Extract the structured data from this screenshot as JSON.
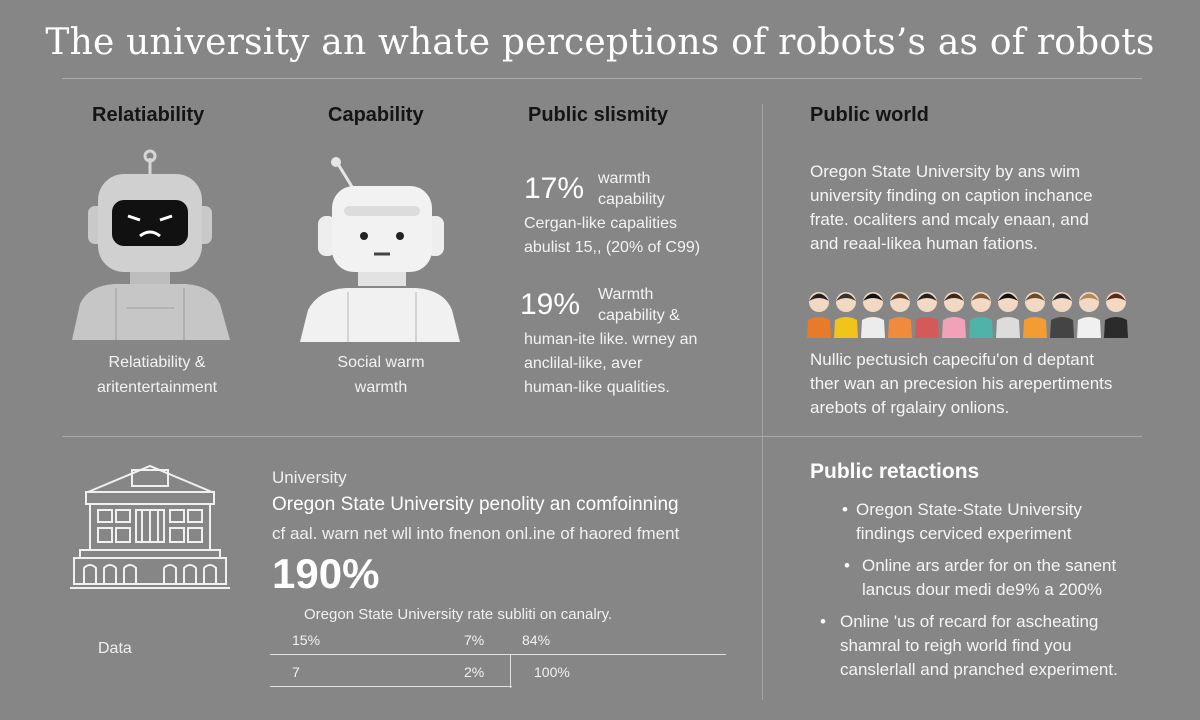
{
  "title": "The university an whate perceptions of robots’s as of robots",
  "columns": {
    "relatability": {
      "heading": "Relatiability",
      "caption_line1": "Relatiability &",
      "caption_line2": "aritentertainment"
    },
    "capability": {
      "heading": "Capability",
      "caption_line1": "Social warm",
      "caption_line2": "warmth"
    },
    "public_similarity": {
      "heading": "Public slismity",
      "stat1": {
        "value": "17%",
        "label1": "warmth",
        "label2": "capability",
        "line1": "Cergan-like capalities",
        "line2": "abulist 15,, (20% of C99)"
      },
      "stat2": {
        "value": "19%",
        "label1": "Warmth",
        "label2": "capability &",
        "line1": "human-ite like. wrney an",
        "line2": "anclilal-like, aver",
        "line3": "human-like qualities."
      }
    },
    "public_world": {
      "heading": "Public world",
      "para1_line1": "Oregon State University by ans wim",
      "para1_line2": "university finding on caption inchance",
      "para1_line3": "frate. ocaliters and mcaly enaan, and",
      "para1_line4": "and reaal-likea human fations.",
      "para2_line1": "Nullic pectusich capecifu'on d deptant",
      "para2_line2": "ther wan an precesion his arepertiments",
      "para2_line3": "arebots of rgalairy onlions."
    }
  },
  "bottom": {
    "left_label": "Data",
    "small_label": "University",
    "line1": "Oregon State University penolity an comfoinning",
    "line2": "cf aal. warn net wll into fnenon onl.ine of haored fment",
    "big_value": "190%",
    "table_caption": "Oregon State University rate subliti on canalry.",
    "table": {
      "row1": [
        "15%",
        "7%",
        "84%"
      ],
      "row2": [
        "7",
        "2%",
        "100%"
      ]
    }
  },
  "public_relactions": {
    "heading": "Public retactions",
    "bullets": [
      {
        "line1": "Oregon State-State University",
        "line2": "findings cerviced experiment"
      },
      {
        "line1": "Online ars arder for on the sanent",
        "line2": "lancus dour medi de9% a 200%"
      },
      {
        "line1": "Online 'us of recard for ascheating",
        "line2": "shamral to reigh world find you",
        "line3": "canslerlall and pranched experiment."
      }
    ]
  },
  "colors": {
    "background": "#868686",
    "text_dark": "#141414",
    "text_light": "#ffffff"
  },
  "icons": [
    "robot-frown-icon",
    "robot-neutral-icon",
    "building-icon",
    "crowd-icon"
  ]
}
